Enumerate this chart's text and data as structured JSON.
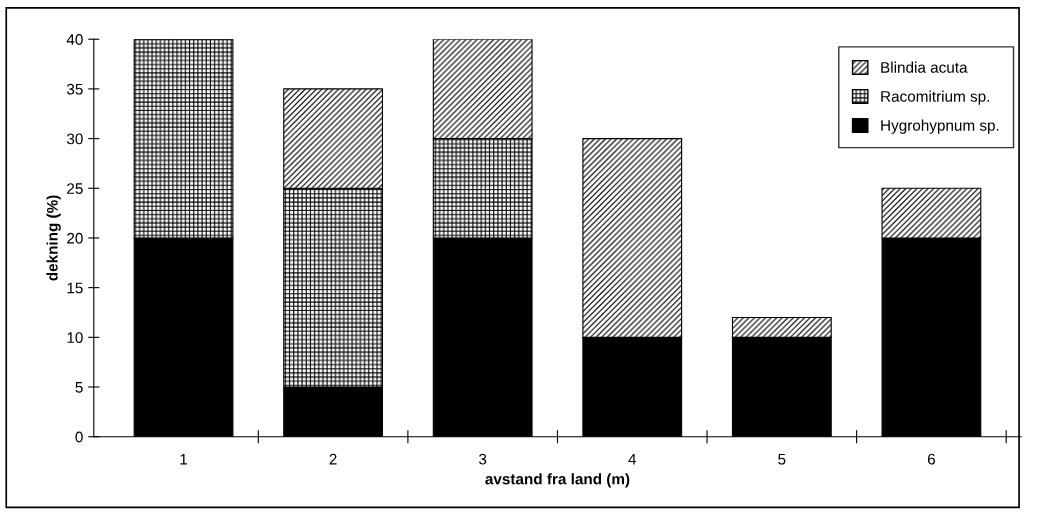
{
  "chart_data": {
    "type": "bar",
    "stacked": true,
    "xlabel": "avstand fra land (m)",
    "ylabel": "dekning (%)",
    "categories": [
      "1",
      "2",
      "3",
      "4",
      "5",
      "6"
    ],
    "series": [
      {
        "name": "Hygrohypnum sp.",
        "color": "#000000",
        "values": [
          20,
          5,
          20,
          10,
          10,
          20
        ]
      },
      {
        "name": "Racomitrium sp.",
        "color": "#000000",
        "values": [
          20,
          20,
          10,
          0,
          0,
          0
        ]
      },
      {
        "name": "Blindia acuta",
        "color": "#000000",
        "values": [
          0,
          10,
          10,
          20,
          2,
          5
        ]
      }
    ],
    "ylim": [
      0,
      40
    ],
    "yticks": [
      0,
      5,
      10,
      15,
      20,
      25,
      30,
      35,
      40
    ],
    "grid": false,
    "legend": "top right"
  }
}
